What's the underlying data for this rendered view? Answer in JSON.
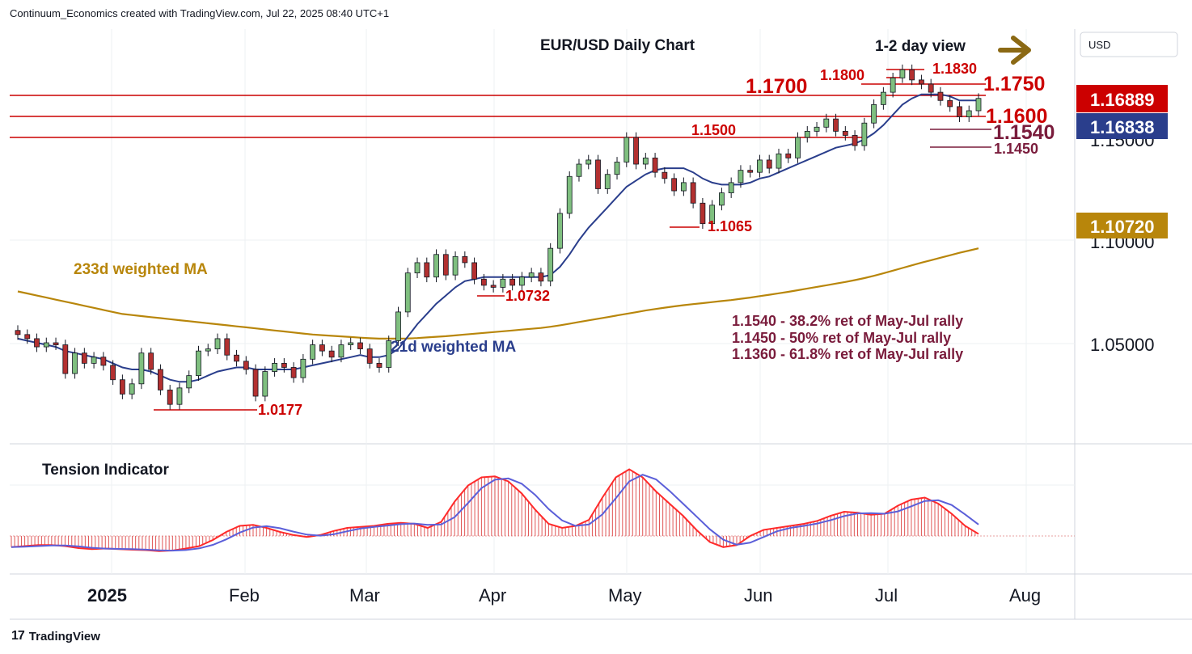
{
  "header": {
    "credit": "Continuum_Economics created with TradingView.com, Jul 22, 2025 08:40 UTC+1"
  },
  "footer": {
    "logo_text": "TradingView",
    "logo_mark": "17"
  },
  "chart_data": {
    "type": "line",
    "title": "EUR/USD Daily Chart",
    "subtitle": "1-2 day view",
    "view_direction": "right-arrow",
    "currency": "USD",
    "y_axis": {
      "ticks": [
        1.1,
        1.05
      ],
      "tick_labels": [
        "1.10000",
        "1.05000"
      ],
      "partial_tick_label": "1.15000",
      "ylim": [
        1.0,
        1.2
      ]
    },
    "x_axis": {
      "tick_labels": [
        "2025",
        "Feb",
        "Mar",
        "Apr",
        "May",
        "Jun",
        "Jul",
        "Aug"
      ]
    },
    "price_badges": [
      {
        "label": "1.16889",
        "color": "#cc0000"
      },
      {
        "label": "1.16838",
        "color": "#2a3e8c"
      },
      {
        "label": "1.10720",
        "color": "#b8860b"
      }
    ],
    "levels": [
      {
        "value": 1.17,
        "label": "1.1700"
      },
      {
        "value": 1.16,
        "label": "1.1600"
      },
      {
        "value": 1.15,
        "label": "1.1500"
      },
      {
        "value": 1.175,
        "label": "1.1750"
      },
      {
        "value": 1.183,
        "label": "1.1830"
      },
      {
        "value": 1.18,
        "label": "1.1800"
      },
      {
        "value": 1.154,
        "label": "1.1540"
      },
      {
        "value": 1.145,
        "label": "1.1450"
      },
      {
        "value": 1.1065,
        "label": "1.1065"
      },
      {
        "value": 1.0732,
        "label": "1.0732"
      },
      {
        "value": 1.0177,
        "label": "1.0177"
      }
    ],
    "series_labels": {
      "ma233": "233d weighted MA",
      "ma21": "21d weighted MA",
      "indicator": "Tension Indicator"
    },
    "notes": [
      "1.1540 - 38.2% ret of May-Jul rally",
      "1.1450 - 50% ret of May-Jul rally",
      "1.1360 - 61.8% ret of May-Jul rally"
    ],
    "close": [
      1.054,
      1.052,
      1.048,
      1.05,
      1.049,
      1.035,
      1.045,
      1.04,
      1.043,
      1.039,
      1.032,
      1.025,
      1.03,
      1.045,
      1.037,
      1.027,
      1.02,
      1.028,
      1.034,
      1.046,
      1.047,
      1.052,
      1.044,
      1.041,
      1.037,
      1.024,
      1.036,
      1.04,
      1.038,
      1.033,
      1.042,
      1.049,
      1.046,
      1.043,
      1.049,
      1.05,
      1.047,
      1.04,
      1.038,
      1.051,
      1.065,
      1.084,
      1.089,
      1.082,
      1.093,
      1.083,
      1.092,
      1.089,
      1.081,
      1.078,
      1.077,
      1.081,
      1.078,
      1.082,
      1.084,
      1.08,
      1.096,
      1.113,
      1.131,
      1.137,
      1.139,
      1.125,
      1.132,
      1.138,
      1.15,
      1.137,
      1.14,
      1.133,
      1.13,
      1.124,
      1.128,
      1.118,
      1.108,
      1.117,
      1.123,
      1.128,
      1.134,
      1.133,
      1.139,
      1.135,
      1.142,
      1.14,
      1.15,
      1.153,
      1.155,
      1.159,
      1.153,
      1.151,
      1.146,
      1.157,
      1.166,
      1.172,
      1.179,
      1.183,
      1.178,
      1.176,
      1.172,
      1.168,
      1.165,
      1.16,
      1.163,
      1.169
    ],
    "ma21": [
      1.052,
      1.051,
      1.05,
      1.049,
      1.048,
      1.046,
      1.045,
      1.044,
      1.043,
      1.042,
      1.04,
      1.038,
      1.037,
      1.037,
      1.036,
      1.034,
      1.032,
      1.031,
      1.031,
      1.032,
      1.034,
      1.036,
      1.037,
      1.038,
      1.038,
      1.037,
      1.037,
      1.037,
      1.037,
      1.037,
      1.038,
      1.039,
      1.04,
      1.041,
      1.042,
      1.043,
      1.044,
      1.043,
      1.043,
      1.044,
      1.047,
      1.053,
      1.059,
      1.064,
      1.069,
      1.073,
      1.077,
      1.08,
      1.081,
      1.082,
      1.082,
      1.082,
      1.082,
      1.082,
      1.082,
      1.082,
      1.083,
      1.087,
      1.093,
      1.1,
      1.106,
      1.111,
      1.116,
      1.121,
      1.126,
      1.129,
      1.132,
      1.134,
      1.135,
      1.135,
      1.135,
      1.133,
      1.13,
      1.128,
      1.127,
      1.127,
      1.127,
      1.128,
      1.13,
      1.131,
      1.133,
      1.135,
      1.137,
      1.139,
      1.141,
      1.143,
      1.145,
      1.146,
      1.147,
      1.149,
      1.152,
      1.156,
      1.161,
      1.166,
      1.169,
      1.171,
      1.171,
      1.171,
      1.17,
      1.168,
      1.168,
      1.168
    ],
    "ma233": [
      1.075,
      1.074,
      1.073,
      1.072,
      1.071,
      1.07,
      1.069,
      1.068,
      1.067,
      1.066,
      1.065,
      1.064,
      1.0635,
      1.063,
      1.0625,
      1.062,
      1.0615,
      1.061,
      1.0605,
      1.06,
      1.0595,
      1.059,
      1.0585,
      1.058,
      1.0575,
      1.057,
      1.0565,
      1.056,
      1.0555,
      1.055,
      1.0545,
      1.054,
      1.0537,
      1.0534,
      1.0531,
      1.0528,
      1.0525,
      1.0522,
      1.052,
      1.052,
      1.052,
      1.0521,
      1.0523,
      1.0526,
      1.0529,
      1.0532,
      1.0536,
      1.054,
      1.0544,
      1.0548,
      1.0552,
      1.0556,
      1.056,
      1.0564,
      1.0568,
      1.0572,
      1.0578,
      1.0585,
      1.0593,
      1.0601,
      1.0609,
      1.0617,
      1.0625,
      1.0633,
      1.0641,
      1.0649,
      1.0657,
      1.0664,
      1.0671,
      1.0677,
      1.0683,
      1.0688,
      1.0693,
      1.0698,
      1.0703,
      1.0708,
      1.0714,
      1.072,
      1.0727,
      1.0734,
      1.0741,
      1.0748,
      1.0756,
      1.0764,
      1.0772,
      1.078,
      1.0788,
      1.0796,
      1.0805,
      1.0815,
      1.0826,
      1.0838,
      1.0851,
      1.0864,
      1.0877,
      1.089,
      1.0902,
      1.0914,
      1.0926,
      1.0938,
      1.0949,
      1.096
    ],
    "tension": [
      -0.55,
      -0.5,
      -0.45,
      -0.45,
      -0.5,
      -0.6,
      -0.65,
      -0.62,
      -0.65,
      -0.68,
      -0.7,
      -0.75,
      -0.72,
      -0.62,
      -0.5,
      -0.2,
      0.2,
      0.5,
      0.55,
      0.4,
      0.2,
      0.05,
      -0.05,
      0.05,
      0.25,
      0.4,
      0.45,
      0.5,
      0.6,
      0.65,
      0.6,
      0.4,
      0.7,
      1.7,
      2.5,
      2.9,
      2.95,
      2.7,
      2.1,
      1.3,
      0.6,
      0.4,
      0.5,
      0.8,
      1.9,
      2.9,
      3.3,
      2.9,
      2.2,
      1.6,
      1.0,
      0.3,
      -0.3,
      -0.55,
      -0.45,
      0.0,
      0.3,
      0.4,
      0.5,
      0.6,
      0.75,
      1.0,
      1.2,
      1.15,
      1.05,
      1.1,
      1.5,
      1.8,
      1.9,
      1.6,
      1.1,
      0.5,
      0.1
    ]
  }
}
